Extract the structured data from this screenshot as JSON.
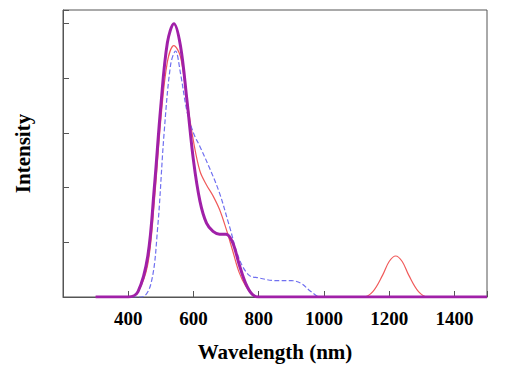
{
  "chart_data": {
    "type": "line",
    "xlabel": "Wavelength (nm)",
    "ylabel": "Intensity",
    "xlim": [
      200,
      1500
    ],
    "xticks": [
      400,
      600,
      800,
      1000,
      1200,
      1400
    ],
    "ylim": [
      0,
      1.05
    ],
    "yticks": [
      0,
      0.2,
      0.4,
      0.6,
      0.8,
      1.0
    ],
    "tick_labels": "x",
    "grid": false,
    "series": [
      {
        "color": "#f05a5a",
        "line_style": "solid",
        "x": [
          300,
          400,
          430,
          460,
          480,
          500,
          520,
          540,
          560,
          580,
          600,
          620,
          640,
          660,
          680,
          700,
          720,
          740,
          760,
          780,
          800,
          1120,
          1150,
          1180,
          1200,
          1220,
          1240,
          1260,
          1290,
          1320,
          1500
        ],
        "values": [
          0,
          0,
          0.02,
          0.12,
          0.35,
          0.65,
          0.86,
          0.92,
          0.88,
          0.72,
          0.57,
          0.46,
          0.41,
          0.37,
          0.32,
          0.25,
          0.17,
          0.09,
          0.04,
          0.01,
          0,
          0,
          0.02,
          0.08,
          0.13,
          0.15,
          0.13,
          0.08,
          0.02,
          0,
          0
        ]
      },
      {
        "color": "#7070f0",
        "line_style": "dashed",
        "x": [
          300,
          440,
          470,
          490,
          510,
          530,
          545,
          560,
          580,
          600,
          620,
          650,
          680,
          710,
          740,
          770,
          800,
          850,
          900,
          930,
          960,
          990,
          1500
        ],
        "values": [
          0,
          0,
          0.05,
          0.25,
          0.6,
          0.85,
          0.9,
          0.82,
          0.68,
          0.6,
          0.55,
          0.47,
          0.38,
          0.26,
          0.14,
          0.08,
          0.07,
          0.06,
          0.06,
          0.05,
          0.02,
          0,
          0
        ]
      },
      {
        "color": "#a020a8",
        "line_style": "solid",
        "x": [
          300,
          400,
          430,
          460,
          480,
          500,
          520,
          540,
          560,
          580,
          600,
          620,
          640,
          660,
          680,
          700,
          720,
          740,
          760,
          780,
          800,
          1500
        ],
        "values": [
          0,
          0,
          0.02,
          0.15,
          0.4,
          0.7,
          0.93,
          1.0,
          0.92,
          0.72,
          0.5,
          0.35,
          0.27,
          0.24,
          0.23,
          0.23,
          0.2,
          0.12,
          0.05,
          0.01,
          0,
          0
        ]
      }
    ]
  }
}
